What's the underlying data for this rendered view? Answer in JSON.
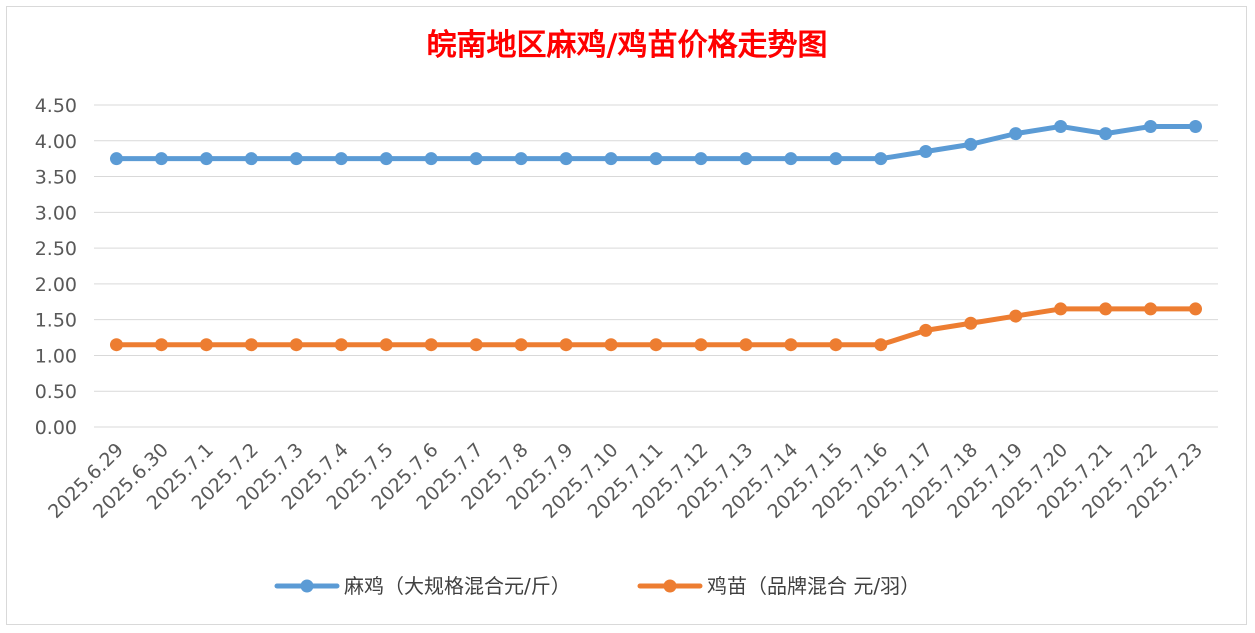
{
  "chart_data": {
    "type": "line",
    "title": "皖南地区麻鸡/鸡苗价格走势图",
    "title_color": "#ff0000",
    "categories": [
      "2025.6.29",
      "2025.6.30",
      "2025.7.1",
      "2025.7.2",
      "2025.7.3",
      "2025.7.4",
      "2025.7.5",
      "2025.7.6",
      "2025.7.7",
      "2025.7.8",
      "2025.7.9",
      "2025.7.10",
      "2025.7.11",
      "2025.7.12",
      "2025.7.13",
      "2025.7.14",
      "2025.7.15",
      "2025.7.16",
      "2025.7.17",
      "2025.7.18",
      "2025.7.19",
      "2025.7.20",
      "2025.7.21",
      "2025.7.22",
      "2025.7.23"
    ],
    "series": [
      {
        "name": "麻鸡（大规格混合元/斤）",
        "color": "#5b9bd5",
        "values": [
          3.75,
          3.75,
          3.75,
          3.75,
          3.75,
          3.75,
          3.75,
          3.75,
          3.75,
          3.75,
          3.75,
          3.75,
          3.75,
          3.75,
          3.75,
          3.75,
          3.75,
          3.75,
          3.85,
          3.95,
          4.1,
          4.2,
          4.1,
          4.2,
          4.2
        ]
      },
      {
        "name": "鸡苗（品牌混合 元/羽）",
        "color": "#ed7d31",
        "values": [
          1.15,
          1.15,
          1.15,
          1.15,
          1.15,
          1.15,
          1.15,
          1.15,
          1.15,
          1.15,
          1.15,
          1.15,
          1.15,
          1.15,
          1.15,
          1.15,
          1.15,
          1.15,
          1.35,
          1.45,
          1.55,
          1.65,
          1.65,
          1.65,
          1.65
        ]
      }
    ],
    "y_ticks": [
      "0.00",
      "0.50",
      "1.00",
      "1.50",
      "2.00",
      "2.50",
      "3.00",
      "3.50",
      "4.00",
      "4.50"
    ],
    "ylim": [
      0,
      4.5
    ],
    "grid": true,
    "legend_position": "bottom"
  }
}
